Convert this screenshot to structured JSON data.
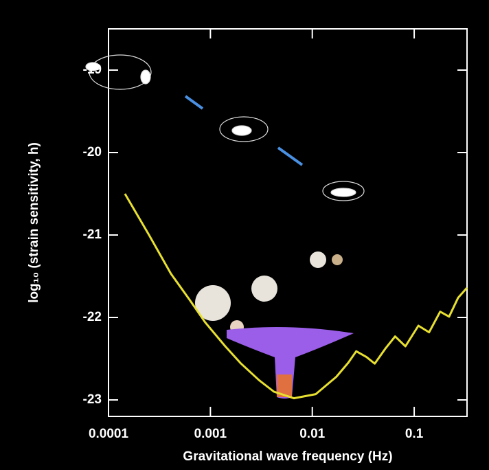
{
  "chart_data": {
    "type": "line",
    "xlabel": "Gravitational wave frequency (Hz)",
    "ylabel": "log₁₀ (strain sensitivity, h)",
    "xscale": "log",
    "xlim": [
      0.0001,
      0.33
    ],
    "ylim": [
      -23.2,
      -18.5
    ],
    "xticks": [
      0.0001,
      0.001,
      0.01,
      0.1
    ],
    "yticks": [
      -19,
      -20,
      -21,
      -22,
      -23
    ],
    "series": [
      {
        "color": "#e8e030",
        "x": [
          0.000145,
          0.00025,
          0.00041,
          0.00062,
          0.00089,
          0.0014,
          0.002,
          0.003,
          0.0042,
          0.0066,
          0.0108,
          0.0172,
          0.0225,
          0.027,
          0.034,
          0.041,
          0.052,
          0.065,
          0.082,
          0.11,
          0.14,
          0.18,
          0.22,
          0.27,
          0.33
        ],
        "values": [
          -20.5,
          -21.0,
          -21.47,
          -21.78,
          -22.06,
          -22.35,
          -22.56,
          -22.76,
          -22.9,
          -22.98,
          -22.93,
          -22.72,
          -22.55,
          -22.41,
          -22.48,
          -22.56,
          -22.38,
          -22.23,
          -22.35,
          -22.1,
          -22.18,
          -21.93,
          -21.99,
          -21.76,
          -21.64
        ]
      }
    ]
  }
}
